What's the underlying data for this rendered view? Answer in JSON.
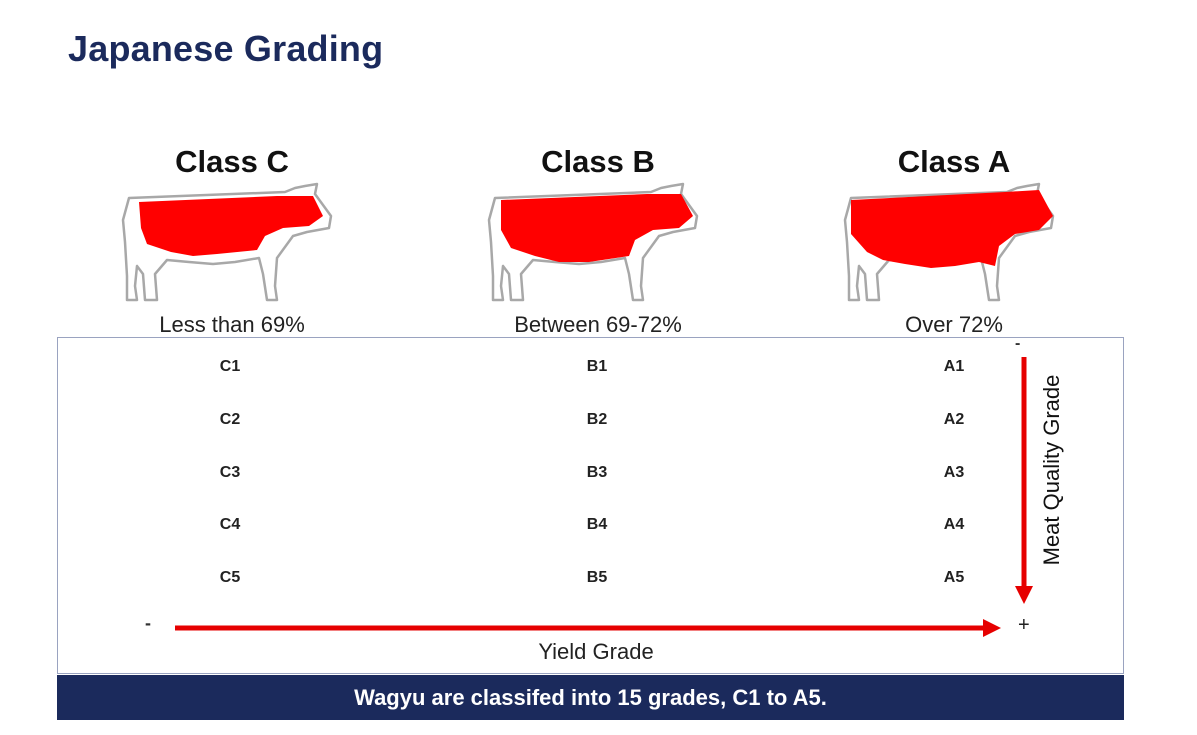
{
  "title": "Japanese Grading",
  "classes": [
    {
      "name": "Class C",
      "range": "Less than 69%",
      "grades": [
        "C1",
        "C2",
        "C3",
        "C4",
        "C5"
      ]
    },
    {
      "name": "Class B",
      "range": "Between 69-72%",
      "grades": [
        "B1",
        "B2",
        "B3",
        "B4",
        "B5"
      ]
    },
    {
      "name": "Class A",
      "range": "Over 72%",
      "grades": [
        "A1",
        "A2",
        "A3",
        "A4",
        "A5"
      ]
    }
  ],
  "axes": {
    "y_label": "Meat Quality Grade",
    "y_start": "-",
    "x_label": "Yield Grade",
    "x_start": "-",
    "x_end": "+"
  },
  "footer": "Wagyu are classifed into 15 grades, C1 to A5.",
  "colors": {
    "accent": "#e60000",
    "navy": "#1b2a5c"
  }
}
